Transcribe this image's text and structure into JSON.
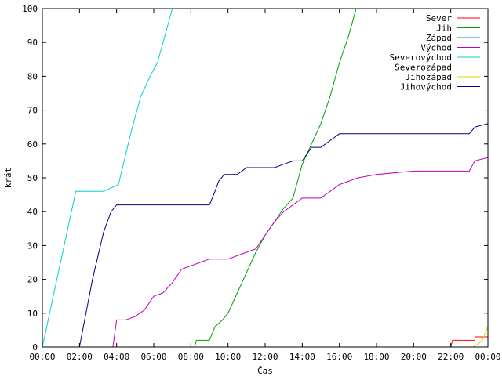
{
  "chart_data": {
    "type": "line",
    "xlabel": "Čas",
    "ylabel": "krát",
    "xlim": [
      0,
      24
    ],
    "ylim": [
      0,
      100
    ],
    "grid": false,
    "legend_position": "top-right",
    "x_ticks": [
      "00:00",
      "02:00",
      "04:00",
      "06:00",
      "08:00",
      "10:00",
      "12:00",
      "14:00",
      "16:00",
      "18:00",
      "20:00",
      "22:00",
      "00:00"
    ],
    "y_ticks": [
      0,
      10,
      20,
      30,
      40,
      50,
      60,
      70,
      80,
      90,
      100
    ],
    "series": [
      {
        "name": "Sever",
        "color": "#ff0000",
        "x": [
          0,
          22.0,
          22.1,
          23.3,
          23.3,
          24
        ],
        "y": [
          0,
          0,
          2,
          2,
          3,
          3
        ]
      },
      {
        "name": "Jih",
        "color": "#00a000",
        "x": [
          0,
          8.2,
          8.3,
          9.0,
          9.3,
          9.7,
          10.0,
          10.5,
          11.0,
          11.5,
          12.0,
          12.5,
          13.0,
          13.5,
          14.0,
          14.5,
          15.0,
          15.5,
          16.0,
          16.5,
          16.9,
          24
        ],
        "y": [
          0,
          0,
          2,
          2,
          6,
          8,
          10,
          16,
          22,
          28,
          33,
          37,
          41,
          44,
          54,
          60,
          66,
          74,
          84,
          92,
          100,
          100
        ]
      },
      {
        "name": "Západ",
        "color": "#008b8b",
        "x": [
          0,
          24
        ],
        "y": [
          0,
          0
        ]
      },
      {
        "name": "Východ",
        "color": "#c000c0",
        "x": [
          0,
          3.8,
          4.0,
          4.5,
          5.0,
          5.5,
          6.0,
          6.5,
          7.0,
          7.5,
          8.0,
          8.5,
          9.0,
          10.0,
          11.0,
          11.5,
          12.0,
          12.5,
          13.0,
          14.0,
          15.0,
          15.5,
          16.0,
          17.0,
          18.0,
          20.0,
          23.0,
          23.3,
          24
        ],
        "y": [
          0,
          0,
          8,
          8,
          9,
          11,
          15,
          16,
          19,
          23,
          24,
          25,
          26,
          26,
          28,
          29,
          33,
          37,
          40,
          44,
          44,
          46,
          48,
          50,
          51,
          52,
          52,
          55,
          56
        ]
      },
      {
        "name": "Severovýchod",
        "color": "#00d0d0",
        "x": [
          0,
          1.8,
          3.3,
          4.1,
          4.8,
          5.3,
          5.8,
          6.2,
          6.6,
          7.0,
          24
        ],
        "y": [
          0,
          46,
          46,
          48,
          64,
          74,
          80,
          84,
          92,
          100,
          100
        ]
      },
      {
        "name": "Severozápad",
        "color": "#b05a1e",
        "x": [
          0,
          24
        ],
        "y": [
          0,
          0
        ]
      },
      {
        "name": "Jihozápad",
        "color": "#e0d000",
        "x": [
          0,
          23.2,
          23.5,
          23.7,
          24
        ],
        "y": [
          0,
          0,
          1,
          2,
          6
        ]
      },
      {
        "name": "Jihovýchod",
        "color": "#000080",
        "x": [
          0,
          2.0,
          2.7,
          3.3,
          3.7,
          4.0,
          9.0,
          9.3,
          9.5,
          9.8,
          10.5,
          11.0,
          12.0,
          12.5,
          13.0,
          13.5,
          14.0,
          14.5,
          15.0,
          15.5,
          16.0,
          17.0,
          23.0,
          23.3,
          24
        ],
        "y": [
          0,
          0,
          20,
          34,
          40,
          42,
          42,
          46,
          49,
          51,
          51,
          53,
          53,
          53,
          54,
          55,
          55,
          59,
          59,
          61,
          63,
          63,
          63,
          65,
          66
        ]
      }
    ]
  }
}
